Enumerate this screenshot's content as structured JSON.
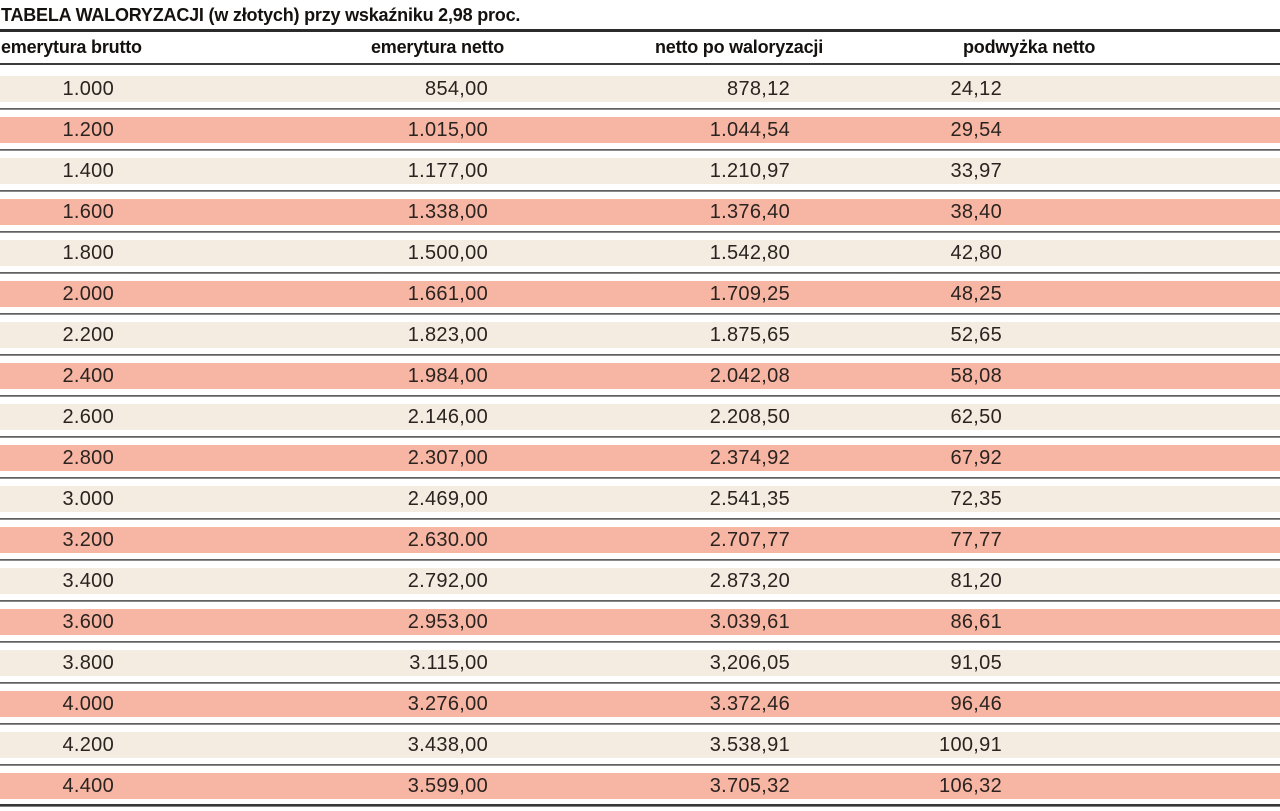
{
  "chart_data": {
    "type": "table",
    "title": "TABELA WALORYZACJI (w złotych) przy wskaźniku 2,98 proc.",
    "columns": [
      "emerytura brutto",
      "emerytura netto",
      "netto po waloryzacji",
      "podwyżka netto"
    ],
    "rows": [
      [
        "1.000",
        "854,00",
        "878,12",
        "24,12"
      ],
      [
        "1.200",
        "1.015,00",
        "1.044,54",
        "29,54"
      ],
      [
        "1.400",
        "1.177,00",
        "1.210,97",
        "33,97"
      ],
      [
        "1.600",
        "1.338,00",
        "1.376,40",
        "38,40"
      ],
      [
        "1.800",
        "1.500,00",
        "1.542,80",
        "42,80"
      ],
      [
        "2.000",
        "1.661,00",
        "1.709,25",
        "48,25"
      ],
      [
        "2.200",
        "1.823,00",
        "1.875,65",
        "52,65"
      ],
      [
        "2.400",
        "1.984,00",
        "2.042,08",
        "58,08"
      ],
      [
        "2.600",
        "2.146,00",
        "2.208,50",
        "62,50"
      ],
      [
        "2.800",
        "2.307,00",
        "2.374,92",
        "67,92"
      ],
      [
        "3.000",
        "2.469,00",
        "2.541,35",
        "72,35"
      ],
      [
        "3.200",
        "2.630.00",
        "2.707,77",
        "77,77"
      ],
      [
        "3.400",
        "2.792,00",
        "2.873,20",
        "81,20"
      ],
      [
        "3.600",
        "2.953,00",
        "3.039,61",
        "86,61"
      ],
      [
        "3.800",
        "3.115,00",
        "3,206,05",
        "91,05"
      ],
      [
        "4.000",
        "3.276,00",
        "3.372,46",
        "96,46"
      ],
      [
        "4.200",
        "3.438,00",
        "3.538,91",
        "100,91"
      ],
      [
        "4.400",
        "3.599,00",
        "3.705,32",
        "106,32"
      ]
    ],
    "legend_position": "none",
    "grid": "horizontal-rules"
  },
  "colors": {
    "row_base_cream": "#f5ece1",
    "row_highlight_salmon": "#f7b5a3",
    "rule_gray": "#4d4d4d",
    "heading_black": "#14110f"
  }
}
